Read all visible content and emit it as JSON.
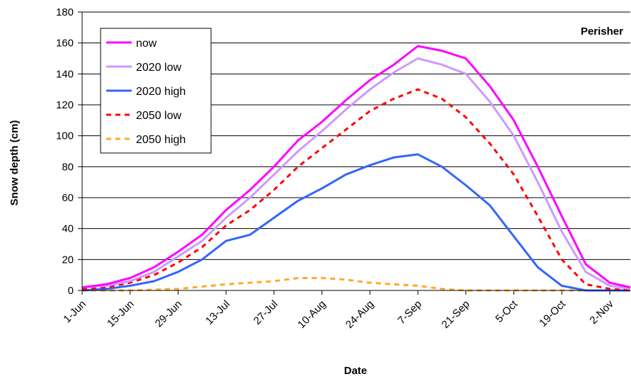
{
  "chart_data": {
    "type": "line",
    "title": "",
    "annotation": "Perisher",
    "xlabel": "Date",
    "ylabel": "Snow depth (cm)",
    "ylim": [
      0,
      180
    ],
    "yticks": [
      0,
      20,
      40,
      60,
      80,
      100,
      120,
      140,
      160,
      180
    ],
    "xlim": [
      "2000-06-01",
      "2000-11-08"
    ],
    "xticks": [
      "2000-06-01",
      "2000-06-15",
      "2000-06-29",
      "2000-07-13",
      "2000-07-27",
      "2000-08-10",
      "2000-08-24",
      "2000-09-07",
      "2000-09-21",
      "2000-10-05",
      "2000-10-19",
      "2000-11-02"
    ],
    "xtick_labels": [
      "1-Jun",
      "15-Jun",
      "29-Jun",
      "13-Jul",
      "27-Jul",
      "10-Aug",
      "24-Aug",
      "7-Sep",
      "21-Sep",
      "5-Oct",
      "19-Oct",
      "2-Nov"
    ],
    "grid": "horizontal",
    "legend_position": "top-left",
    "series": [
      {
        "name": "now",
        "color": "#ff00ff",
        "style": "solid",
        "points": [
          [
            "2000-06-01",
            2
          ],
          [
            "2000-06-08",
            4
          ],
          [
            "2000-06-15",
            8
          ],
          [
            "2000-06-22",
            15
          ],
          [
            "2000-06-29",
            25
          ],
          [
            "2000-07-06",
            36
          ],
          [
            "2000-07-13",
            52
          ],
          [
            "2000-07-20",
            65
          ],
          [
            "2000-07-27",
            80
          ],
          [
            "2000-08-03",
            97
          ],
          [
            "2000-08-10",
            109
          ],
          [
            "2000-08-17",
            123
          ],
          [
            "2000-08-24",
            136
          ],
          [
            "2000-08-31",
            146
          ],
          [
            "2000-09-07",
            158
          ],
          [
            "2000-09-14",
            155
          ],
          [
            "2000-09-21",
            150
          ],
          [
            "2000-09-28",
            132
          ],
          [
            "2000-10-05",
            110
          ],
          [
            "2000-10-12",
            80
          ],
          [
            "2000-10-19",
            48
          ],
          [
            "2000-10-26",
            17
          ],
          [
            "2000-11-02",
            5
          ],
          [
            "2000-11-08",
            2
          ]
        ]
      },
      {
        "name": "2020 low",
        "color": "#cc99ff",
        "style": "solid",
        "points": [
          [
            "2000-06-01",
            2
          ],
          [
            "2000-06-08",
            3
          ],
          [
            "2000-06-15",
            6
          ],
          [
            "2000-06-22",
            12
          ],
          [
            "2000-06-29",
            22
          ],
          [
            "2000-07-06",
            32
          ],
          [
            "2000-07-13",
            47
          ],
          [
            "2000-07-20",
            60
          ],
          [
            "2000-07-27",
            75
          ],
          [
            "2000-08-03",
            90
          ],
          [
            "2000-08-10",
            103
          ],
          [
            "2000-08-17",
            117
          ],
          [
            "2000-08-24",
            130
          ],
          [
            "2000-08-31",
            141
          ],
          [
            "2000-09-07",
            150
          ],
          [
            "2000-09-14",
            146
          ],
          [
            "2000-09-21",
            140
          ],
          [
            "2000-09-28",
            122
          ],
          [
            "2000-10-05",
            100
          ],
          [
            "2000-10-12",
            70
          ],
          [
            "2000-10-19",
            38
          ],
          [
            "2000-10-26",
            12
          ],
          [
            "2000-11-02",
            3
          ],
          [
            "2000-11-08",
            1
          ]
        ]
      },
      {
        "name": "2020 high",
        "color": "#3366ff",
        "style": "solid",
        "points": [
          [
            "2000-06-01",
            0
          ],
          [
            "2000-06-08",
            1
          ],
          [
            "2000-06-15",
            3
          ],
          [
            "2000-06-22",
            6
          ],
          [
            "2000-06-29",
            12
          ],
          [
            "2000-07-06",
            20
          ],
          [
            "2000-07-13",
            32
          ],
          [
            "2000-07-20",
            36
          ],
          [
            "2000-07-27",
            47
          ],
          [
            "2000-08-03",
            58
          ],
          [
            "2000-08-10",
            66
          ],
          [
            "2000-08-17",
            75
          ],
          [
            "2000-08-24",
            81
          ],
          [
            "2000-08-31",
            86
          ],
          [
            "2000-09-07",
            88
          ],
          [
            "2000-09-14",
            80
          ],
          [
            "2000-09-21",
            68
          ],
          [
            "2000-09-28",
            55
          ],
          [
            "2000-10-05",
            35
          ],
          [
            "2000-10-12",
            15
          ],
          [
            "2000-10-19",
            3
          ],
          [
            "2000-10-26",
            0
          ],
          [
            "2000-11-02",
            0
          ],
          [
            "2000-11-08",
            0
          ]
        ]
      },
      {
        "name": "2050 low",
        "color": "#ff0000",
        "style": "dashed",
        "points": [
          [
            "2000-06-01",
            1
          ],
          [
            "2000-06-08",
            2
          ],
          [
            "2000-06-15",
            5
          ],
          [
            "2000-06-22",
            10
          ],
          [
            "2000-06-29",
            18
          ],
          [
            "2000-07-06",
            28
          ],
          [
            "2000-07-13",
            42
          ],
          [
            "2000-07-20",
            52
          ],
          [
            "2000-07-27",
            65
          ],
          [
            "2000-08-03",
            80
          ],
          [
            "2000-08-10",
            92
          ],
          [
            "2000-08-17",
            104
          ],
          [
            "2000-08-24",
            116
          ],
          [
            "2000-08-31",
            124
          ],
          [
            "2000-09-07",
            130
          ],
          [
            "2000-09-14",
            124
          ],
          [
            "2000-09-21",
            112
          ],
          [
            "2000-09-28",
            95
          ],
          [
            "2000-10-05",
            75
          ],
          [
            "2000-10-12",
            48
          ],
          [
            "2000-10-19",
            20
          ],
          [
            "2000-10-26",
            4
          ],
          [
            "2000-11-02",
            1
          ],
          [
            "2000-11-08",
            0
          ]
        ]
      },
      {
        "name": "2050 high",
        "color": "#ffaa22",
        "style": "dashed",
        "points": [
          [
            "2000-06-01",
            0
          ],
          [
            "2000-06-15",
            0
          ],
          [
            "2000-06-29",
            1
          ],
          [
            "2000-07-13",
            4
          ],
          [
            "2000-07-27",
            6
          ],
          [
            "2000-08-03",
            8
          ],
          [
            "2000-08-10",
            8
          ],
          [
            "2000-08-17",
            7
          ],
          [
            "2000-08-24",
            5
          ],
          [
            "2000-08-31",
            4
          ],
          [
            "2000-09-07",
            3
          ],
          [
            "2000-09-14",
            1
          ],
          [
            "2000-09-21",
            0
          ],
          [
            "2000-10-05",
            0
          ],
          [
            "2000-10-19",
            0
          ],
          [
            "2000-11-08",
            0
          ]
        ]
      }
    ]
  }
}
